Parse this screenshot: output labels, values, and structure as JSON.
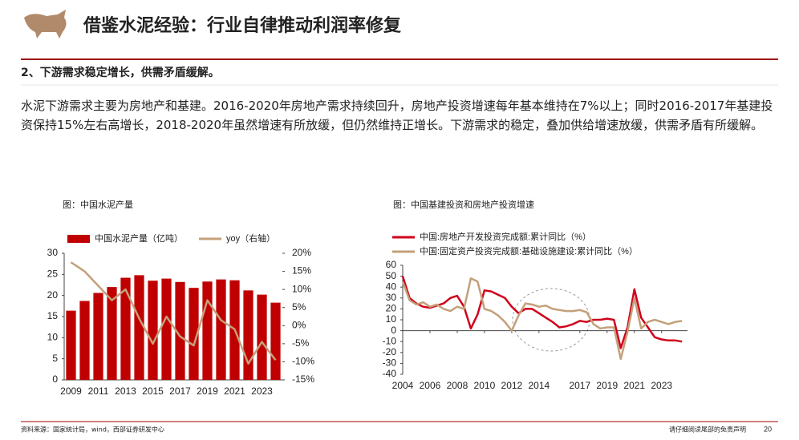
{
  "header": {
    "title": "借鉴水泥经验：行业自律推动利润率修复"
  },
  "section": "2、下游需求稳定增长，供需矛盾缓解。",
  "paragraph": "水泥下游需求主要为房地产和基建。2016-2020年房地产需求持续回升，房地产投资增速每年基本维持在7%以上；同时2016-2017年基建投资保持15%左右高增长，2018-2020年虽然增速有所放缓，但仍然维持正增长。下游需求的稳定，叠加供给增速放缓，供需矛盾有所缓解。",
  "captions": [
    "图：中国水泥产量",
    "图：中国基建投资和房地产投资增速"
  ],
  "footer": {
    "source": "资料来源：国家统计局，wind，西部证券研发中心",
    "disclaimer": "请仔细阅读尾部的免责声明",
    "page": "20"
  },
  "chart_data": [
    {
      "type": "bar",
      "legend": "top",
      "grid": false,
      "categories": [
        "2009",
        null,
        "2011",
        null,
        "2013",
        null,
        "2015",
        null,
        "2017",
        null,
        "2019",
        null,
        "2021",
        null,
        "2023",
        null
      ],
      "series": [
        {
          "name": "中国水泥产量（亿吨）",
          "color": "#c00000",
          "values": [
            16.4,
            18.7,
            20.6,
            22.0,
            24.2,
            24.8,
            23.5,
            24.0,
            23.2,
            21.8,
            23.3,
            23.8,
            23.6,
            21.2,
            20.2,
            18.3
          ]
        },
        {
          "name": "yoy（右轴）",
          "type": "line",
          "axis": "y2",
          "color": "#c4a07a",
          "values": [
            17.5,
            15,
            11,
            7,
            10,
            2,
            -5,
            2.5,
            -3,
            -5.5,
            7,
            1.5,
            -1,
            -10.5,
            -4.5,
            -9.5
          ]
        }
      ],
      "ylim": [
        0,
        30
      ],
      "yticks": [
        0,
        5,
        10,
        15,
        20,
        25,
        30
      ],
      "y2lim": [
        -15,
        20
      ],
      "y2ticks": [
        {
          "value": -15,
          "label": "-15%"
        },
        {
          "value": -10,
          "label": "-10%"
        },
        {
          "value": -5,
          "label": "-5%"
        },
        {
          "value": 0,
          "label": "0%"
        },
        {
          "value": 5,
          "label": "5%"
        },
        {
          "value": 10,
          "label": "10%"
        },
        {
          "value": 15,
          "label": "15%"
        },
        {
          "value": 20,
          "label": "20%"
        }
      ]
    },
    {
      "type": "line",
      "legend": "top-left",
      "grid": false,
      "x": [
        2004,
        2004.5,
        2005,
        2005.5,
        2006,
        2006.5,
        2007,
        2007.5,
        2008,
        2008.5,
        2009,
        2009.5,
        2010,
        2010.5,
        2011,
        2011.5,
        2012,
        2012.5,
        2013,
        2013.5,
        2014,
        2014.5,
        2015,
        2015.5,
        2016,
        2016.5,
        2017,
        2017.5,
        2018,
        2018.5,
        2019,
        2019.5,
        2020,
        2020.5,
        2021,
        2021.5,
        2022,
        2022.5,
        2023,
        2023.5,
        2024,
        2024.5
      ],
      "series": [
        {
          "name": "中国:房地产开发投资完成额:累计同比（%）",
          "color": "#d0021b",
          "values": [
            50,
            30,
            25,
            22,
            21,
            23,
            25,
            30,
            32,
            22,
            2,
            15,
            37,
            36,
            33,
            30,
            22,
            16,
            20,
            20,
            16,
            12,
            8,
            3,
            4,
            6,
            9,
            8,
            10,
            10,
            11,
            10,
            -16,
            3,
            38,
            12,
            3,
            -6,
            -8,
            -9,
            -9,
            -10
          ]
        },
        {
          "name": "中国:固定资产投资完成额:基础设施建设:累计同比（%）",
          "color": "#c4a07a",
          "values": [
            45,
            28,
            24,
            26,
            22,
            24,
            20,
            18,
            22,
            20,
            48,
            45,
            20,
            18,
            14,
            8,
            0,
            14,
            25,
            24,
            22,
            23,
            20,
            19,
            18,
            18,
            19,
            17,
            6,
            2,
            3,
            3,
            -26,
            -1,
            30,
            2,
            8,
            10,
            8,
            6,
            8,
            9
          ]
        }
      ],
      "xlim": [
        2004,
        2024.9
      ],
      "xticks": [
        2004,
        2006,
        2008,
        2010,
        2012,
        2014,
        2017,
        2019,
        2021,
        2023
      ],
      "ylim": [
        -40,
        60
      ],
      "yticks": [
        -40,
        -30,
        -20,
        -10,
        0,
        10,
        20,
        30,
        40,
        50,
        60
      ]
    }
  ]
}
